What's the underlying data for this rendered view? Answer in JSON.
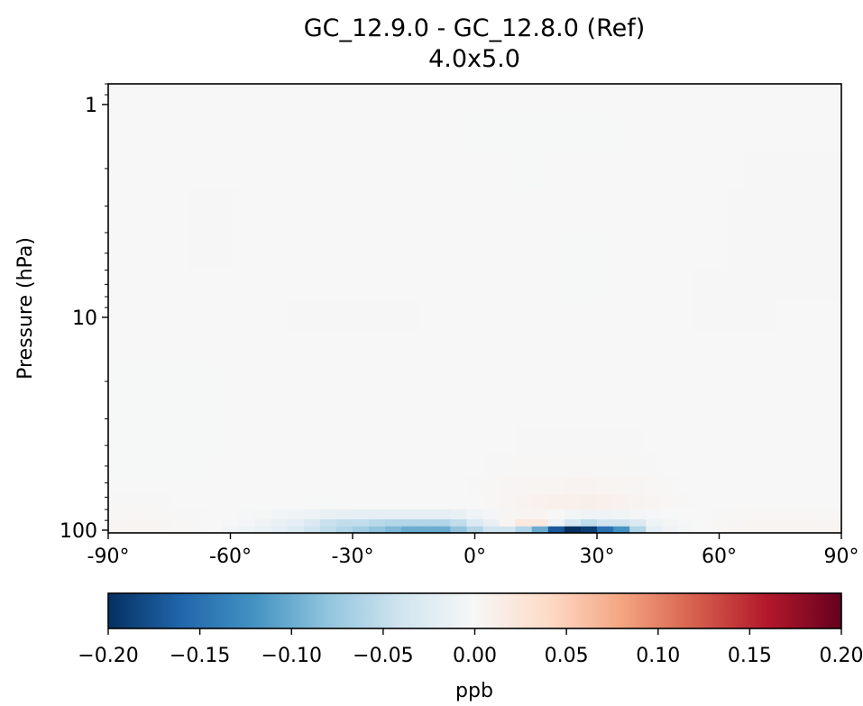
{
  "chart_data": {
    "type": "heatmap",
    "title": "GC_12.9.0 - GC_12.8.0 (Ref)",
    "subtitle": "4.0x5.0",
    "xlabel": "",
    "ylabel": "Pressure (hPa)",
    "x_ticks": [
      {
        "value": -90,
        "label": "-90°"
      },
      {
        "value": -60,
        "label": "-60°"
      },
      {
        "value": -30,
        "label": "-30°"
      },
      {
        "value": 0,
        "label": "0°"
      },
      {
        "value": 30,
        "label": "30°"
      },
      {
        "value": 60,
        "label": "60°"
      },
      {
        "value": 90,
        "label": "90°"
      }
    ],
    "xlim": [
      -90,
      90
    ],
    "y_scale": "log",
    "y_reversed": true,
    "y_ticks": [
      {
        "value": 1,
        "label": "1"
      },
      {
        "value": 10,
        "label": "10"
      },
      {
        "value": 100,
        "label": "100"
      }
    ],
    "ylim": [
      103,
      0.8
    ],
    "colorbar": {
      "label": "ppb",
      "colormap": "RdBu_r",
      "vmin": -0.2,
      "vmax": 0.2,
      "orientation": "horizontal",
      "ticks": [
        {
          "value": -0.2,
          "label": "−0.20"
        },
        {
          "value": -0.15,
          "label": "−0.15"
        },
        {
          "value": -0.1,
          "label": "−0.10"
        },
        {
          "value": -0.05,
          "label": "−0.05"
        },
        {
          "value": 0,
          "label": "0.00"
        },
        {
          "value": 0.05,
          "label": "0.05"
        },
        {
          "value": 0.1,
          "label": "0.10"
        },
        {
          "value": 0.15,
          "label": "0.15"
        },
        {
          "value": 0.2,
          "label": "0.20"
        }
      ],
      "stops": [
        "#053061",
        "#2166ac",
        "#4393c3",
        "#92c5de",
        "#d1e5f0",
        "#f7f7f7",
        "#fddbc7",
        "#f4a582",
        "#d6604d",
        "#b2182b",
        "#67001f"
      ]
    },
    "lat_edges": [
      -90,
      -86,
      -82,
      -78,
      -74,
      -70,
      -66,
      -62,
      -58,
      -54,
      -50,
      -46,
      -42,
      -38,
      -34,
      -30,
      -26,
      -22,
      -18,
      -14,
      -10,
      -6,
      -2,
      2,
      6,
      10,
      14,
      18,
      22,
      26,
      30,
      34,
      38,
      42,
      46,
      50,
      54,
      58,
      62,
      66,
      70,
      74,
      78,
      82,
      86,
      90
    ],
    "levels": [
      {
        "pressure": 99,
        "values": [
          0.004,
          0.004,
          0.004,
          0.003,
          0.002,
          0.001,
          0.0,
          -0.005,
          -0.01,
          -0.014,
          -0.02,
          -0.028,
          -0.04,
          -0.05,
          -0.06,
          -0.07,
          -0.08,
          -0.09,
          -0.1,
          -0.1,
          -0.1,
          -0.08,
          -0.06,
          -0.04,
          -0.04,
          -0.06,
          -0.1,
          -0.17,
          -0.22,
          -0.19,
          -0.15,
          -0.12,
          -0.06,
          -0.02,
          -0.008,
          -0.003,
          0.0,
          0.002,
          0.003,
          0.004,
          0.004,
          0.005,
          0.005,
          0.004,
          0.004
        ]
      },
      {
        "pressure": 92,
        "values": [
          0.003,
          0.004,
          0.004,
          0.003,
          0.002,
          0.001,
          0.0,
          -0.002,
          -0.004,
          -0.008,
          -0.014,
          -0.02,
          -0.03,
          -0.045,
          -0.05,
          -0.05,
          -0.055,
          -0.06,
          -0.06,
          -0.06,
          -0.06,
          -0.05,
          -0.03,
          -0.015,
          0.004,
          0.02,
          0.02,
          -0.01,
          -0.035,
          -0.05,
          -0.04,
          -0.04,
          -0.03,
          -0.01,
          -0.005,
          -0.002,
          0.0,
          0.002,
          0.003,
          0.004,
          0.004,
          0.004,
          0.004,
          0.004,
          0.003
        ]
      },
      {
        "pressure": 85,
        "values": [
          0.002,
          0.002,
          0.002,
          0.002,
          0.001,
          0.001,
          0.0,
          0.0,
          -0.002,
          -0.003,
          -0.005,
          -0.008,
          -0.012,
          -0.015,
          -0.018,
          -0.02,
          -0.02,
          -0.02,
          -0.02,
          -0.02,
          -0.02,
          -0.015,
          -0.01,
          -0.004,
          0.003,
          0.005,
          0.004,
          0.0,
          -0.005,
          -0.008,
          -0.008,
          -0.006,
          -0.004,
          -0.002,
          -0.001,
          0.0,
          0.0,
          0.001,
          0.002,
          0.002,
          0.002,
          0.002,
          0.002,
          0.002,
          0.002
        ]
      },
      {
        "pressure": 74,
        "values": [
          0.001,
          0.001,
          0.001,
          0.001,
          0.0,
          0.0,
          0.0,
          0.0,
          0.0,
          0.0,
          0.0,
          0.0,
          -0.001,
          -0.001,
          0.0,
          0.0,
          0.0,
          0.0,
          0.0,
          0.0,
          0.0,
          0.0,
          0.0,
          0.002,
          0.004,
          0.006,
          0.008,
          0.01,
          0.01,
          0.012,
          0.01,
          0.008,
          0.006,
          0.004,
          0.002,
          0.001,
          0.0,
          0.0,
          0.0,
          0.0,
          0.0,
          0.0,
          0.0,
          0.0,
          0.0
        ]
      },
      {
        "pressure": 62,
        "values": [
          0.0,
          0.0,
          0.0,
          0.0,
          0.0,
          0.0,
          0.0,
          0.0,
          0.0,
          0.0,
          0.0,
          0.0,
          0.0,
          0.0,
          0.0,
          0.0,
          0.0,
          0.0,
          0.0,
          0.0,
          0.0,
          0.0,
          0.001,
          0.002,
          0.003,
          0.004,
          0.005,
          0.005,
          0.006,
          0.006,
          0.005,
          0.004,
          0.003,
          0.002,
          0.001,
          0.0,
          0.0,
          0.0,
          0.0,
          0.0,
          0.0,
          0.0,
          0.0,
          0.0,
          0.0
        ]
      },
      {
        "pressure": 50,
        "values": [
          -0.001,
          -0.001,
          -0.001,
          -0.001,
          -0.001,
          -0.001,
          0.0,
          0.0,
          0.0,
          0.0,
          0.0,
          0.0,
          0.0,
          0.0,
          0.0,
          0.0,
          0.0,
          0.0,
          0.0,
          0.0,
          0.0,
          0.0,
          0.0,
          0.001,
          0.001,
          0.002,
          0.002,
          0.002,
          0.002,
          0.002,
          0.002,
          0.002,
          0.001,
          0.001,
          0.0,
          0.0,
          0.0,
          0.0,
          0.0,
          0.0,
          0.0,
          0.0,
          0.0,
          0.0,
          0.0
        ]
      },
      {
        "pressure": 38,
        "values": [
          -0.001,
          -0.001,
          -0.001,
          -0.001,
          -0.001,
          -0.001,
          -0.001,
          0.0,
          0.0,
          0.0,
          0.0,
          0.0,
          0.0,
          0.0,
          0.0,
          0.0,
          0.0,
          0.0,
          0.0,
          0.0,
          0.0,
          0.0,
          0.0,
          0.0,
          0.0,
          0.001,
          0.001,
          0.001,
          0.001,
          0.001,
          0.001,
          0.001,
          0.001,
          0.0,
          0.0,
          0.0,
          0.0,
          0.0,
          0.0,
          0.0,
          0.0,
          0.0,
          0.0,
          0.0,
          0.0
        ]
      },
      {
        "pressure": 28,
        "values": [
          -0.001,
          -0.001,
          -0.001,
          -0.001,
          -0.001,
          -0.001,
          -0.001,
          0.0,
          0.0,
          0.0,
          0.0,
          0.0,
          0.0,
          0.0,
          0.0,
          0.0,
          0.0,
          0.0,
          0.0,
          0.0,
          0.0,
          0.0,
          0.0,
          0.0,
          0.0,
          0.0,
          0.0,
          0.0,
          0.0,
          0.0,
          0.0,
          0.0,
          0.0,
          0.0,
          0.0,
          0.0,
          0.0,
          0.0,
          0.0,
          0.0,
          0.0,
          0.0,
          0.0,
          0.0,
          0.0
        ]
      },
      {
        "pressure": 20,
        "values": [
          -0.001,
          -0.001,
          -0.001,
          -0.001,
          -0.001,
          -0.001,
          -0.001,
          0.0,
          0.0,
          0.0,
          0.0,
          0.0,
          0.0,
          0.0,
          0.0,
          0.0,
          0.0,
          0.0,
          0.0,
          0.0,
          0.0,
          0.0,
          0.0,
          0.0,
          0.0,
          0.0,
          0.0,
          0.0,
          0.0,
          0.0,
          0.0,
          0.0,
          0.0,
          0.0,
          0.0,
          0.0,
          0.0,
          0.0,
          0.0,
          0.0,
          0.0,
          0.0,
          0.0,
          0.0,
          0.0
        ]
      },
      {
        "pressure": 14,
        "values": [
          0.0,
          0.0,
          0.0,
          0.0,
          0.0,
          0.0,
          0.0,
          0.0,
          0.0,
          0.0,
          0.0,
          0.0,
          0.0,
          0.0,
          0.0,
          0.0,
          0.0,
          0.0,
          0.0,
          0.0,
          0.0,
          0.0,
          0.0,
          0.0,
          0.0,
          0.0,
          0.0,
          0.0,
          0.0,
          0.0,
          0.0,
          0.0,
          0.0,
          0.0,
          0.0,
          0.0,
          0.0,
          0.0,
          0.0,
          0.0,
          0.0,
          0.0,
          0.0,
          0.0,
          0.0
        ]
      },
      {
        "pressure": 10,
        "values": [
          0.0,
          0.0,
          0.0,
          0.0,
          0.0,
          0.0,
          0.0,
          0.0,
          0.0,
          0.0,
          0.0,
          0.001,
          0.001,
          0.001,
          0.001,
          0.001,
          0.001,
          0.001,
          0.001,
          0.0,
          0.0,
          0.0,
          0.0,
          0.0,
          0.0,
          0.0,
          0.0,
          0.0,
          0.0,
          0.0,
          0.0,
          0.0,
          0.0,
          0.0,
          0.0,
          0.0,
          0.001,
          0.001,
          0.001,
          0.001,
          0.001,
          0.0,
          0.0,
          0.0,
          0.0
        ]
      },
      {
        "pressure": 7,
        "values": [
          0.0,
          0.0,
          0.0,
          0.0,
          0.0,
          0.0,
          0.0,
          0.0,
          0.0,
          0.0,
          0.0,
          0.0,
          0.0,
          0.0,
          0.0,
          0.0,
          0.0,
          0.0,
          0.0,
          0.0,
          0.0,
          0.0,
          0.0,
          0.0,
          0.0,
          0.0,
          0.0,
          0.0,
          -0.001,
          -0.001,
          0.0,
          0.0,
          0.0,
          0.0,
          0.0,
          0.0,
          0.001,
          0.001,
          0.001,
          0.001,
          0.001,
          0.001,
          0.001,
          0.001,
          0.001
        ]
      },
      {
        "pressure": 5,
        "values": [
          0.0,
          0.0,
          0.0,
          0.0,
          0.0,
          0.001,
          0.001,
          0.001,
          0.0,
          0.0,
          0.0,
          0.0,
          0.0,
          0.0,
          0.0,
          0.0,
          0.0,
          0.0,
          0.0,
          0.0,
          0.0,
          0.0,
          0.0,
          0.0,
          0.0,
          0.0,
          0.0,
          0.0,
          -0.001,
          -0.001,
          0.0,
          0.0,
          0.0,
          0.0,
          0.0,
          0.0,
          0.0,
          0.0,
          0.001,
          0.001,
          0.001,
          0.001,
          0.001,
          0.001,
          0.001
        ]
      },
      {
        "pressure": 3,
        "values": [
          0.0,
          0.0,
          0.0,
          0.0,
          0.0,
          0.001,
          0.001,
          0.001,
          0.0,
          0.0,
          0.0,
          0.0,
          0.0,
          0.0,
          0.0,
          0.0,
          0.0,
          0.0,
          0.0,
          0.0,
          0.0,
          0.0,
          0.0,
          0.0,
          0.0,
          0.0,
          0.0,
          0.0,
          0.0,
          0.0,
          0.0,
          0.0,
          0.0,
          0.0,
          0.0,
          0.0,
          0.0,
          0.0,
          0.001,
          0.001,
          0.001,
          0.001,
          0.001,
          0.001,
          0.001
        ]
      },
      {
        "pressure": 2,
        "values": [
          0.0,
          0.0,
          0.0,
          0.0,
          0.0,
          0.0,
          0.0,
          0.0,
          0.0,
          0.0,
          0.0,
          0.0,
          0.0,
          0.0,
          0.0,
          0.0,
          0.0,
          0.0,
          0.0,
          0.0,
          0.0,
          0.0,
          0.0,
          0.0,
          0.0,
          -0.001,
          -0.001,
          0.0,
          0.0,
          0.0,
          0.0,
          0.0,
          0.0,
          0.0,
          0.0,
          0.0,
          0.0,
          0.0,
          0.0,
          0.001,
          0.001,
          0.001,
          0.001,
          0.001,
          0.001
        ]
      },
      {
        "pressure": 1.4,
        "values": [
          0.0,
          0.0,
          0.0,
          0.0,
          0.0,
          0.0,
          0.0,
          0.0,
          0.0,
          0.0,
          0.0,
          0.0,
          0.0,
          0.0,
          0.0,
          0.0,
          0.0,
          0.0,
          0.0,
          0.0,
          0.0,
          0.0,
          -0.001,
          -0.001,
          -0.001,
          -0.001,
          -0.001,
          -0.001,
          -0.001,
          -0.001,
          -0.001,
          0.0,
          0.0,
          0.0,
          0.0,
          0.0,
          0.0,
          0.0,
          0.0,
          0.0,
          0.0,
          0.0,
          0.0,
          0.0,
          0.0
        ]
      },
      {
        "pressure": 0.9,
        "values": [
          0.0,
          0.0,
          0.0,
          0.0,
          0.0,
          0.0,
          0.0,
          0.0,
          0.0,
          0.0,
          0.0,
          0.0,
          0.0,
          0.0,
          0.0,
          0.0,
          0.0,
          0.0,
          0.0,
          0.0,
          0.0,
          0.0,
          0.0,
          0.0,
          0.0,
          0.0,
          0.0,
          0.0,
          0.0,
          0.0,
          0.0,
          0.0,
          0.0,
          0.0,
          0.0,
          0.0,
          0.0,
          0.0,
          0.0,
          0.0,
          0.0,
          0.0,
          0.0,
          0.0,
          0.0
        ]
      }
    ]
  }
}
